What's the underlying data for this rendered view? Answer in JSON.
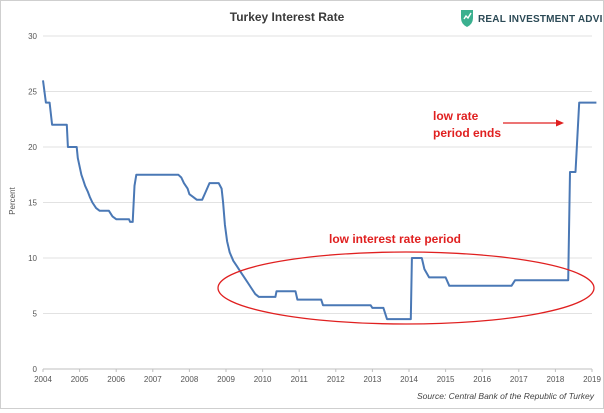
{
  "chart_data": {
    "type": "line",
    "title": "Turkey Interest Rate",
    "ylabel": "Percent",
    "xlabel": "",
    "xlim": [
      2004,
      2019
    ],
    "ylim": [
      0,
      30
    ],
    "xticks": [
      "2004",
      "2005",
      "2006",
      "2007",
      "2008",
      "2009",
      "2010",
      "2011",
      "2012",
      "2013",
      "2014",
      "2015",
      "2016",
      "2017",
      "2018",
      "2019"
    ],
    "yticks": [
      "0",
      "5",
      "10",
      "15",
      "20",
      "25",
      "30"
    ],
    "grid": "horizontal",
    "series": [
      {
        "color": "#4a78b5",
        "points": [
          [
            2004.0,
            26.0
          ],
          [
            2004.08,
            24.0
          ],
          [
            2004.18,
            24.0
          ],
          [
            2004.25,
            22.0
          ],
          [
            2004.65,
            22.0
          ],
          [
            2004.68,
            20.0
          ],
          [
            2004.92,
            20.0
          ],
          [
            2004.95,
            19.0
          ],
          [
            2005.05,
            17.5
          ],
          [
            2005.1,
            17.0
          ],
          [
            2005.15,
            16.5
          ],
          [
            2005.22,
            16.0
          ],
          [
            2005.28,
            15.5
          ],
          [
            2005.35,
            15.0
          ],
          [
            2005.45,
            14.5
          ],
          [
            2005.55,
            14.25
          ],
          [
            2005.8,
            14.25
          ],
          [
            2005.9,
            13.75
          ],
          [
            2006.0,
            13.5
          ],
          [
            2006.35,
            13.5
          ],
          [
            2006.38,
            13.25
          ],
          [
            2006.45,
            13.25
          ],
          [
            2006.5,
            16.5
          ],
          [
            2006.55,
            17.5
          ],
          [
            2007.7,
            17.5
          ],
          [
            2007.78,
            17.25
          ],
          [
            2007.85,
            16.75
          ],
          [
            2007.95,
            16.25
          ],
          [
            2008.0,
            15.75
          ],
          [
            2008.1,
            15.5
          ],
          [
            2008.2,
            15.25
          ],
          [
            2008.35,
            15.25
          ],
          [
            2008.45,
            16.0
          ],
          [
            2008.55,
            16.75
          ],
          [
            2008.8,
            16.75
          ],
          [
            2008.88,
            16.25
          ],
          [
            2008.92,
            15.0
          ],
          [
            2008.97,
            13.0
          ],
          [
            2009.03,
            11.5
          ],
          [
            2009.1,
            10.5
          ],
          [
            2009.2,
            9.75
          ],
          [
            2009.3,
            9.25
          ],
          [
            2009.4,
            8.75
          ],
          [
            2009.5,
            8.25
          ],
          [
            2009.6,
            7.75
          ],
          [
            2009.7,
            7.25
          ],
          [
            2009.8,
            6.75
          ],
          [
            2009.9,
            6.5
          ],
          [
            2010.35,
            6.5
          ],
          [
            2010.38,
            7.0
          ],
          [
            2010.9,
            7.0
          ],
          [
            2010.95,
            6.25
          ],
          [
            2011.6,
            6.25
          ],
          [
            2011.65,
            5.75
          ],
          [
            2012.95,
            5.75
          ],
          [
            2013.0,
            5.5
          ],
          [
            2013.3,
            5.5
          ],
          [
            2013.4,
            4.5
          ],
          [
            2014.05,
            4.5
          ],
          [
            2014.08,
            10.0
          ],
          [
            2014.35,
            10.0
          ],
          [
            2014.42,
            9.0
          ],
          [
            2014.55,
            8.25
          ],
          [
            2015.0,
            8.25
          ],
          [
            2015.1,
            7.5
          ],
          [
            2015.25,
            7.5
          ],
          [
            2016.8,
            7.5
          ],
          [
            2016.9,
            8.0
          ],
          [
            2018.35,
            8.0
          ],
          [
            2018.4,
            17.75
          ],
          [
            2018.55,
            17.75
          ],
          [
            2018.65,
            24.0
          ],
          [
            2019.12,
            24.0
          ]
        ]
      }
    ],
    "annotations": [
      {
        "lines": [
          "low interest rate period"
        ]
      },
      {
        "lines": [
          "low rate",
          "period ends"
        ]
      }
    ],
    "source": "Source: Central Bank of the Republic of Turkey"
  },
  "brand": {
    "name": "REAL INVESTMENT ADVICE",
    "logo_color": "#3bb08f"
  },
  "colors": {
    "line": "#4a78b5",
    "annotation": "#e02020",
    "grid": "#e2e2e2"
  }
}
